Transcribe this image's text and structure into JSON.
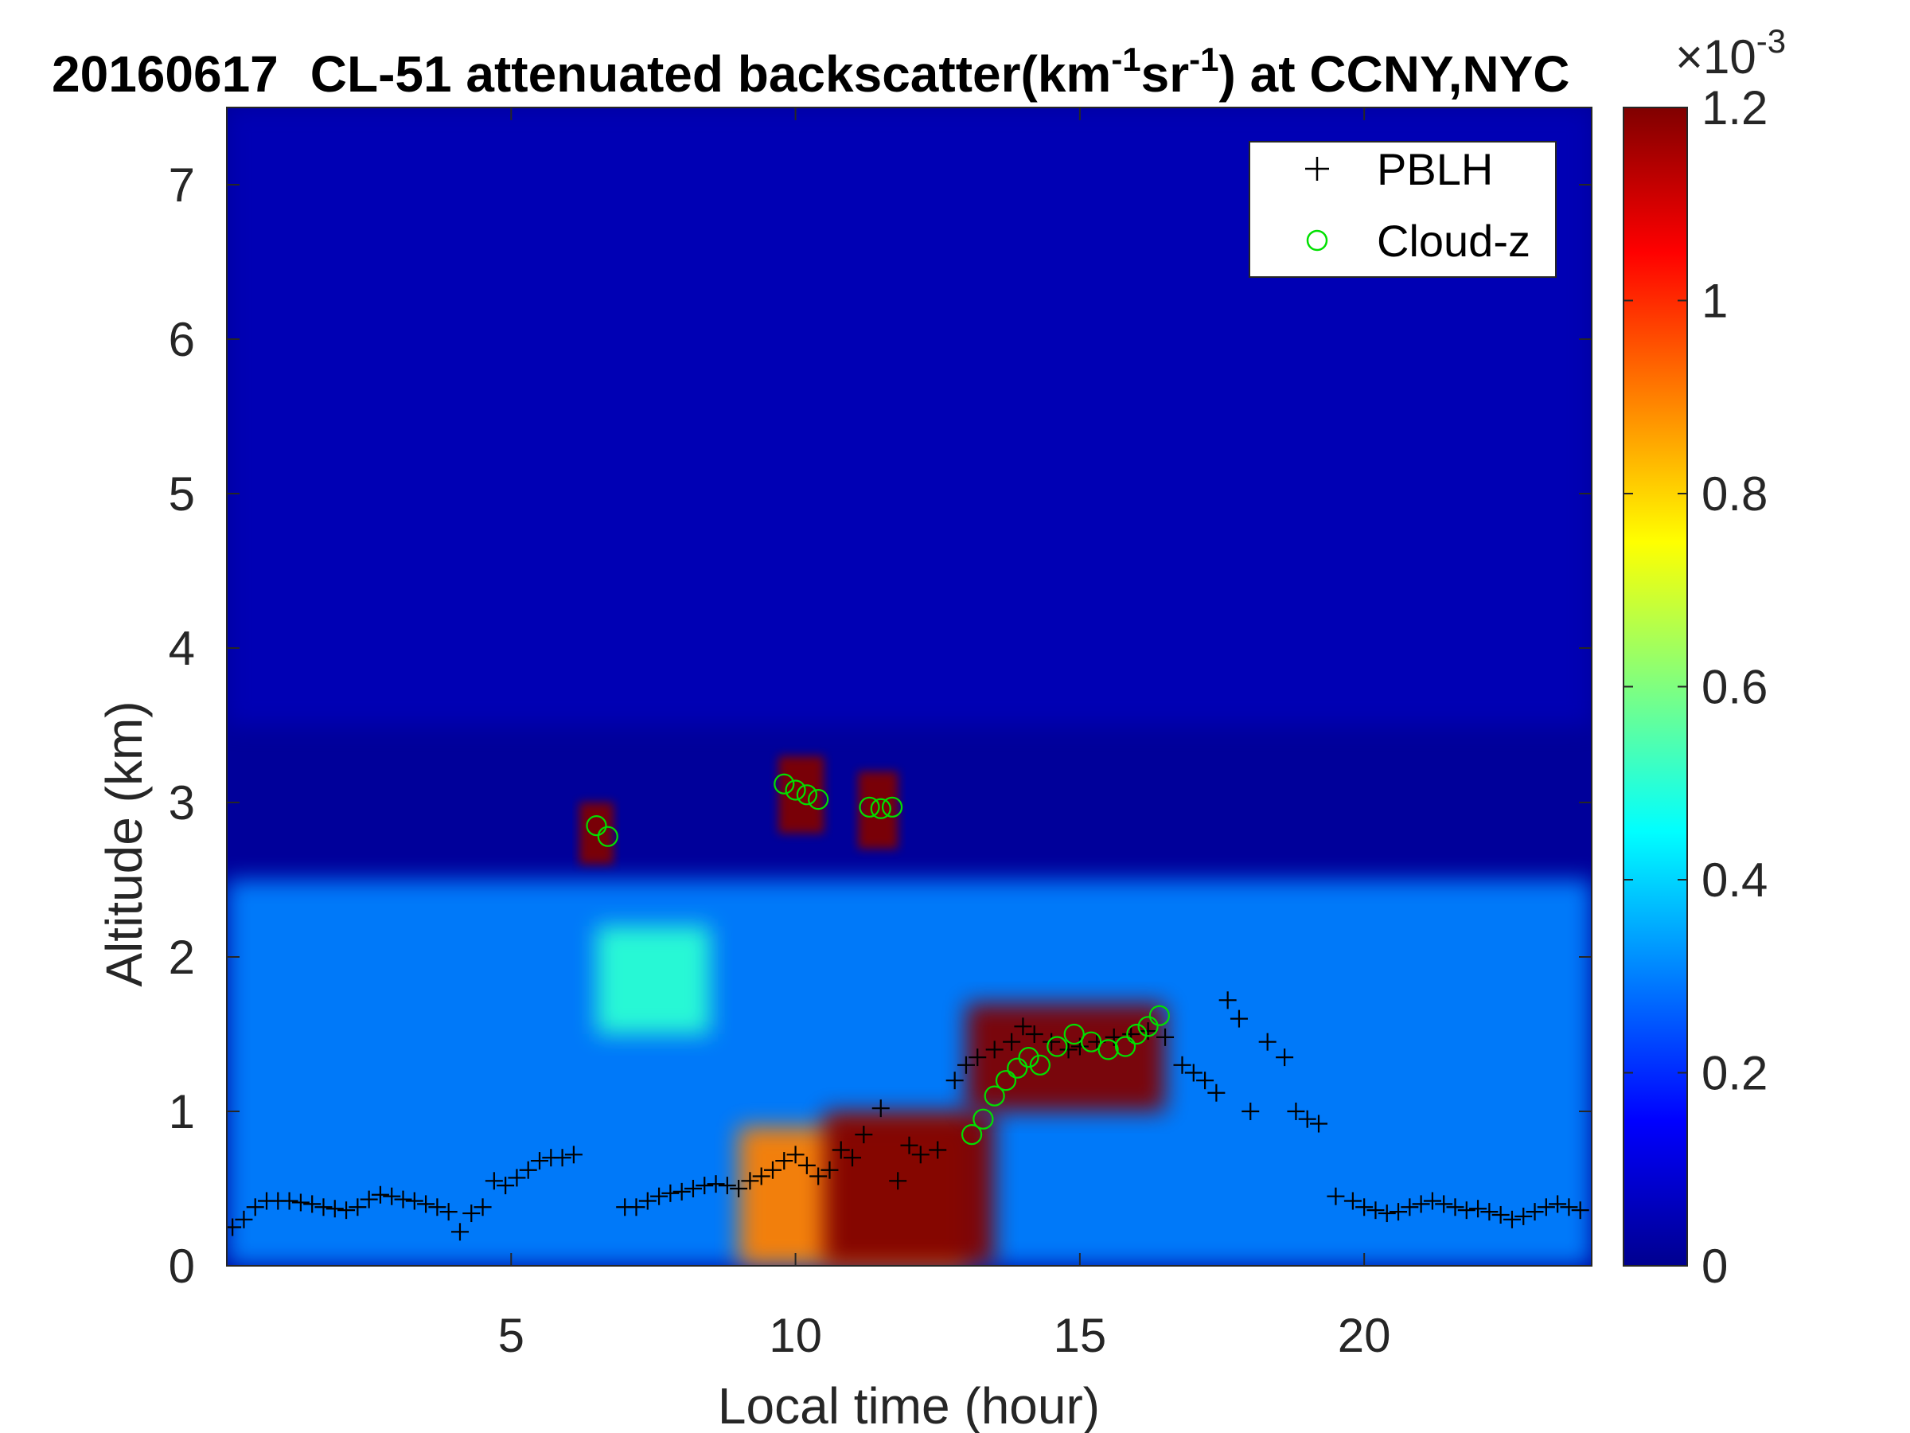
{
  "chart_data": {
    "type": "heatmap",
    "title": {
      "date": "20160617",
      "prefix": "CL-51 attenuated backscatter(km",
      "exp1": "-1",
      "middle": "sr",
      "exp2": "-1",
      "suffix": ") at CCNY,NYC"
    },
    "xlabel": "Local time (hour)",
    "ylabel": "Altitude (km)",
    "xlim": [
      0,
      24
    ],
    "ylim": [
      0,
      7.5
    ],
    "xticks": [
      5,
      10,
      15,
      20
    ],
    "yticks": [
      0,
      1,
      2,
      3,
      4,
      5,
      6,
      7
    ],
    "colorbar": {
      "range": [
        0,
        1.2
      ],
      "ticks": [
        0,
        0.2,
        0.4,
        0.6,
        0.8,
        1,
        1.2
      ],
      "tick_labels": [
        "0",
        "0.2",
        "0.4",
        "0.6",
        "0.8",
        "1",
        "1.2"
      ],
      "multiplier_base": "×10",
      "multiplier_exp": "-3",
      "colormap": "jet"
    },
    "legend": {
      "position": "top-right",
      "entries": [
        {
          "label": "PBLH",
          "marker": "+",
          "color": "#000000"
        },
        {
          "label": "Cloud-z",
          "marker": "o",
          "color": "#00e000"
        }
      ]
    },
    "series": [
      {
        "name": "PBLH",
        "x": [
          0.1,
          0.3,
          0.5,
          0.7,
          0.9,
          1.1,
          1.3,
          1.5,
          1.7,
          1.9,
          2.1,
          2.3,
          2.5,
          2.7,
          2.9,
          3.1,
          3.3,
          3.5,
          3.7,
          3.9,
          4.1,
          4.3,
          4.5,
          4.7,
          4.9,
          5.1,
          5.3,
          5.5,
          5.7,
          5.9,
          6.1,
          7.0,
          7.2,
          7.4,
          7.6,
          7.8,
          8.0,
          8.2,
          8.4,
          8.6,
          8.8,
          9.0,
          9.2,
          9.4,
          9.6,
          9.8,
          10.0,
          10.2,
          10.4,
          10.6,
          10.8,
          11.0,
          11.2,
          11.5,
          11.8,
          12.0,
          12.2,
          12.5,
          12.8,
          13.0,
          13.2,
          13.5,
          13.8,
          14.0,
          14.2,
          14.5,
          14.8,
          15.0,
          15.3,
          15.6,
          15.9,
          16.2,
          16.5,
          16.8,
          17.0,
          17.2,
          17.4,
          17.6,
          17.8,
          18.0,
          18.3,
          18.6,
          18.8,
          19.0,
          19.2,
          19.5,
          19.8,
          20.0,
          20.2,
          20.4,
          20.6,
          20.8,
          21.0,
          21.2,
          21.4,
          21.6,
          21.8,
          22.0,
          22.2,
          22.4,
          22.6,
          22.8,
          23.0,
          23.2,
          23.4,
          23.6,
          23.8
        ],
        "y": [
          0.25,
          0.3,
          0.38,
          0.42,
          0.42,
          0.42,
          0.41,
          0.4,
          0.38,
          0.37,
          0.36,
          0.38,
          0.43,
          0.46,
          0.45,
          0.43,
          0.42,
          0.4,
          0.38,
          0.35,
          0.22,
          0.34,
          0.38,
          0.55,
          0.52,
          0.57,
          0.62,
          0.68,
          0.7,
          0.7,
          0.72,
          0.38,
          0.38,
          0.42,
          0.45,
          0.47,
          0.48,
          0.5,
          0.52,
          0.53,
          0.52,
          0.5,
          0.55,
          0.58,
          0.62,
          0.68,
          0.72,
          0.65,
          0.58,
          0.62,
          0.75,
          0.7,
          0.85,
          1.02,
          0.55,
          0.78,
          0.72,
          0.75,
          1.2,
          1.3,
          1.35,
          1.4,
          1.45,
          1.55,
          1.5,
          1.45,
          1.4,
          1.42,
          1.45,
          1.48,
          1.5,
          1.52,
          1.48,
          1.3,
          1.25,
          1.2,
          1.12,
          1.72,
          1.6,
          1.0,
          1.45,
          1.35,
          1.0,
          0.95,
          0.92,
          0.45,
          0.42,
          0.38,
          0.36,
          0.34,
          0.35,
          0.38,
          0.4,
          0.42,
          0.4,
          0.38,
          0.36,
          0.37,
          0.35,
          0.33,
          0.3,
          0.32,
          0.35,
          0.38,
          0.4,
          0.38,
          0.36
        ]
      },
      {
        "name": "Cloud-z",
        "x": [
          6.5,
          6.7,
          9.8,
          10.0,
          10.2,
          10.4,
          11.3,
          11.5,
          11.7,
          13.1,
          13.3,
          13.5,
          13.7,
          13.9,
          14.1,
          14.3,
          14.6,
          14.9,
          15.2,
          15.5,
          15.8,
          16.0,
          16.2,
          16.4
        ],
        "y": [
          2.85,
          2.78,
          3.12,
          3.08,
          3.05,
          3.02,
          2.97,
          2.96,
          2.97,
          0.85,
          0.95,
          1.1,
          1.2,
          1.28,
          1.35,
          1.3,
          1.42,
          1.5,
          1.45,
          1.4,
          1.42,
          1.5,
          1.55,
          1.62
        ]
      }
    ],
    "heatmap_features": [
      {
        "desc": "boundary layer aerosol (yellow/orange)",
        "x": [
          9.0,
          13.0
        ],
        "y": [
          0.0,
          0.9
        ],
        "value": 0.9
      },
      {
        "desc": "saturated boundary layer",
        "x": [
          10.5,
          13.5
        ],
        "y": [
          0.0,
          1.0
        ],
        "value": 1.2
      },
      {
        "desc": "cloud layer at PBL top",
        "x": [
          13.0,
          16.5
        ],
        "y": [
          1.0,
          1.7
        ],
        "value": 1.2
      },
      {
        "desc": "residual layer (light blue)",
        "x": [
          0.0,
          24.0
        ],
        "y": [
          0.0,
          2.5
        ],
        "value": 0.3
      },
      {
        "desc": "elevated aerosol layer",
        "x": [
          6.5,
          8.5
        ],
        "y": [
          1.5,
          2.2
        ],
        "value": 0.5
      },
      {
        "desc": "mid-level clouds",
        "x": [
          6.2,
          6.8
        ],
        "y": [
          2.6,
          3.0
        ],
        "value": 1.2
      },
      {
        "desc": "mid-level clouds",
        "x": [
          9.7,
          10.5
        ],
        "y": [
          2.8,
          3.3
        ],
        "value": 1.2
      },
      {
        "desc": "mid-level clouds",
        "x": [
          11.1,
          11.8
        ],
        "y": [
          2.7,
          3.2
        ],
        "value": 1.2
      },
      {
        "desc": "free troposphere",
        "x": [
          0.0,
          24.0
        ],
        "y": [
          3.5,
          7.5
        ],
        "value": 0.05
      }
    ]
  }
}
